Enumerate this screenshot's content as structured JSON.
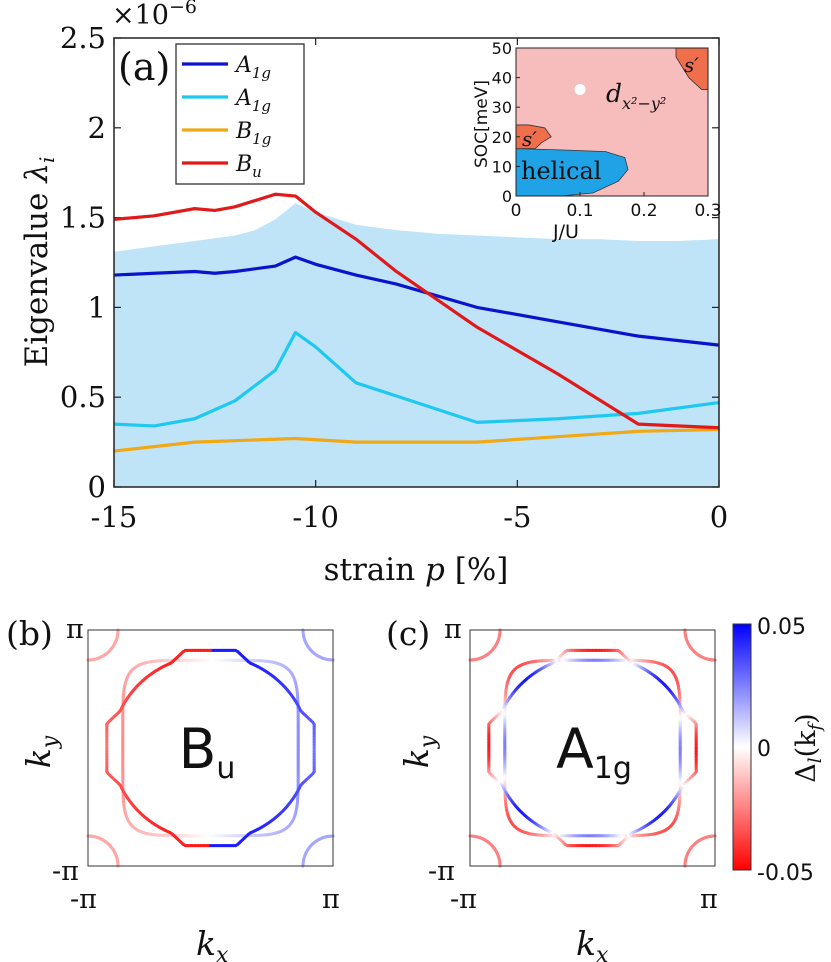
{
  "chart_data": [
    {
      "panel": "(a)",
      "type": "line",
      "title": "",
      "xlabel_pre": "strain",
      "xlabel_var": "p",
      "xlabel_unit": "[%]",
      "ylabel_pre": "Eigenvalue",
      "ylabel_var": "λ",
      "ylabel_sub": "i",
      "y_multiplier": "×10",
      "y_multiplier_exp": "−6",
      "xlim": [
        -15,
        0
      ],
      "ylim": [
        0,
        2.5
      ],
      "xticks": [
        -15,
        -10,
        -5,
        0
      ],
      "xtick_labels": [
        "-15",
        "-10",
        "-5",
        "0"
      ],
      "yticks": [
        0,
        0.5,
        1,
        1.5,
        2,
        2.5
      ],
      "ytick_labels": [
        "0",
        "0.5",
        "1",
        "1.5",
        "2",
        "2.5"
      ],
      "shaded_band": {
        "color": "#bfe4f7",
        "x": [
          -15,
          -14,
          -13,
          -12,
          -11.5,
          -11,
          -10.5,
          -10,
          -9,
          -8,
          -7,
          -6,
          -5,
          -4,
          -3,
          -2,
          -1,
          0
        ],
        "upper": [
          1.31,
          1.34,
          1.37,
          1.4,
          1.43,
          1.49,
          1.58,
          1.53,
          1.46,
          1.43,
          1.41,
          1.4,
          1.39,
          1.38,
          1.38,
          1.37,
          1.37,
          1.38
        ]
      },
      "series": [
        {
          "name": "A",
          "sub": "1g",
          "color": "#0a14cc",
          "x": [
            -15,
            -14,
            -13,
            -12.5,
            -12,
            -11,
            -10.5,
            -10,
            -9,
            -8,
            -6,
            -4,
            -2,
            0
          ],
          "values": [
            1.18,
            1.19,
            1.2,
            1.19,
            1.2,
            1.23,
            1.28,
            1.24,
            1.18,
            1.13,
            1.0,
            0.92,
            0.84,
            0.79
          ]
        },
        {
          "name": "A",
          "sub": "1g",
          "color": "#1ec8f0",
          "x": [
            -15,
            -14,
            -13,
            -12.5,
            -12,
            -11,
            -10.5,
            -10,
            -9,
            -6,
            -4,
            -2,
            0
          ],
          "values": [
            0.35,
            0.34,
            0.38,
            0.43,
            0.48,
            0.65,
            0.86,
            0.78,
            0.58,
            0.36,
            0.38,
            0.41,
            0.47
          ]
        },
        {
          "name": "B",
          "sub": "1g",
          "color": "#f0a816",
          "x": [
            -15,
            -13,
            -10.5,
            -9,
            -6,
            -4,
            -2,
            0
          ],
          "values": [
            0.2,
            0.25,
            0.27,
            0.25,
            0.25,
            0.28,
            0.31,
            0.32
          ]
        },
        {
          "name": "B",
          "sub": "u",
          "color": "#e01a1a",
          "x": [
            -15,
            -14,
            -13,
            -12.5,
            -12,
            -11,
            -10.5,
            -10,
            -9,
            -8,
            -6,
            -4,
            -2,
            0
          ],
          "values": [
            1.49,
            1.51,
            1.55,
            1.54,
            1.56,
            1.63,
            1.62,
            1.53,
            1.38,
            1.2,
            0.89,
            0.63,
            0.35,
            0.33
          ]
        }
      ]
    },
    {
      "panel": "inset",
      "type": "phase-diagram",
      "xlabel": "J/U",
      "ylabel": "SOC[meV]",
      "xlim": [
        0,
        0.3
      ],
      "ylim": [
        0,
        50
      ],
      "xticks": [
        0,
        0.1,
        0.2,
        0.3
      ],
      "xtick_labels": [
        "0",
        "0.1",
        "0.2",
        "0.3"
      ],
      "yticks": [
        0,
        10,
        20,
        30,
        40,
        50
      ],
      "ytick_labels": [
        "0",
        "10",
        "20",
        "30",
        "40",
        "50"
      ],
      "marker": {
        "x": 0.1,
        "y": 36
      },
      "regions": [
        {
          "label": "d",
          "sub": "x²−y²",
          "color": "#f7bcbc",
          "polygon": [
            [
              0,
              0
            ],
            [
              0.3,
              0
            ],
            [
              0.3,
              50
            ],
            [
              0,
              50
            ]
          ]
        },
        {
          "label": "helical",
          "color": "#1fa3e6",
          "polygon": [
            [
              0,
              0
            ],
            [
              0.07,
              0
            ],
            [
              0.12,
              1
            ],
            [
              0.16,
              5
            ],
            [
              0.175,
              9
            ],
            [
              0.17,
              13
            ],
            [
              0.14,
              15
            ],
            [
              0.08,
              15.5
            ],
            [
              0,
              16
            ]
          ]
        },
        {
          "label": "s′",
          "color": "#ef6f4c",
          "polygon": [
            [
              0,
              16
            ],
            [
              0.03,
              16
            ],
            [
              0.04,
              18
            ],
            [
              0.055,
              20
            ],
            [
              0.045,
              23
            ],
            [
              0.02,
              24
            ],
            [
              0,
              24
            ]
          ]
        },
        {
          "label": "s′",
          "color": "#ef6f4c",
          "polygon": [
            [
              0.25,
              50
            ],
            [
              0.3,
              50
            ],
            [
              0.3,
              36
            ],
            [
              0.29,
              36
            ],
            [
              0.28,
              38
            ],
            [
              0.27,
              40
            ],
            [
              0.25,
              47
            ]
          ]
        }
      ]
    },
    {
      "panel": "(b)",
      "type": "fermi-surface",
      "label": "B",
      "label_sub": "u",
      "label_color": "#dd1111",
      "xlabel_var": "k",
      "xlabel_sub": "x",
      "ylabel_var": "k",
      "ylabel_sub": "y",
      "xtick_labels": [
        "-π",
        "π"
      ],
      "ytick_labels": [
        "π",
        "-π"
      ]
    },
    {
      "panel": "(c)",
      "type": "fermi-surface",
      "label": "A",
      "label_sub": "1g",
      "label_color": "#1111dd",
      "xlabel_var": "k",
      "xlabel_sub": "x",
      "ylabel_var": "k",
      "ylabel_sub": "y",
      "xtick_labels": [
        "-π",
        "π"
      ],
      "ytick_labels": [
        "π",
        "-π"
      ]
    },
    {
      "panel": "colorbar",
      "type": "colorbar",
      "label_var": "Δ",
      "label_sub": "l",
      "label_arg": "(k",
      "label_arg_sub": "f",
      "label_close": ")",
      "max_label": "0.05",
      "mid_label": "0",
      "min_label": "-0.05",
      "colors": [
        "#0000ff",
        "#ffffff",
        "#ff0000"
      ]
    }
  ]
}
